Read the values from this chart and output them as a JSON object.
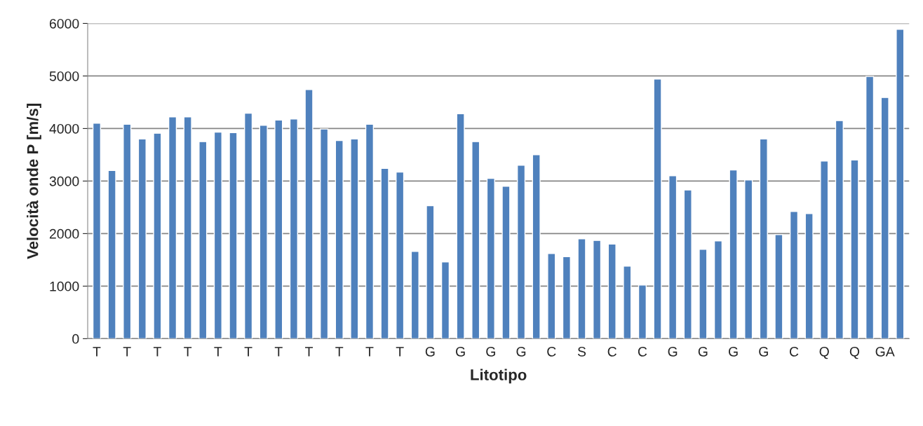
{
  "chart_data": {
    "type": "bar",
    "xlabel": "Litotipo",
    "ylabel": "Velocità onde P [m/s]",
    "categories": [
      "T",
      null,
      "T",
      null,
      "T",
      null,
      "T",
      null,
      "T",
      null,
      "T",
      null,
      "T",
      null,
      "T",
      null,
      "T",
      null,
      "T",
      null,
      "T",
      null,
      "G",
      null,
      "G",
      null,
      "G",
      null,
      "G",
      null,
      "C",
      null,
      "S",
      null,
      "C",
      null,
      "C",
      null,
      "G",
      null,
      "G",
      null,
      "G",
      null,
      "G",
      null,
      "C",
      null,
      "Q",
      null,
      "Q",
      null,
      "GA",
      null
    ],
    "values": [
      4100,
      3200,
      4080,
      3800,
      3910,
      4220,
      4220,
      3750,
      3930,
      3920,
      4290,
      4060,
      4160,
      4180,
      4740,
      3990,
      3770,
      3800,
      4080,
      3240,
      3170,
      1660,
      2530,
      1460,
      4280,
      3750,
      3050,
      2900,
      3300,
      3500,
      1620,
      1560,
      1900,
      1870,
      1800,
      1380,
      1020,
      4940,
      3100,
      2830,
      1700,
      1860,
      3210,
      3020,
      3800,
      1980,
      2420,
      2380,
      3380,
      4150,
      3400,
      4990,
      4590,
      5890
    ],
    "color": "#4f81bd",
    "ylim": [
      0,
      6000
    ],
    "yticks": [
      0,
      1000,
      2000,
      3000,
      4000,
      5000,
      6000
    ],
    "grid": "y"
  }
}
